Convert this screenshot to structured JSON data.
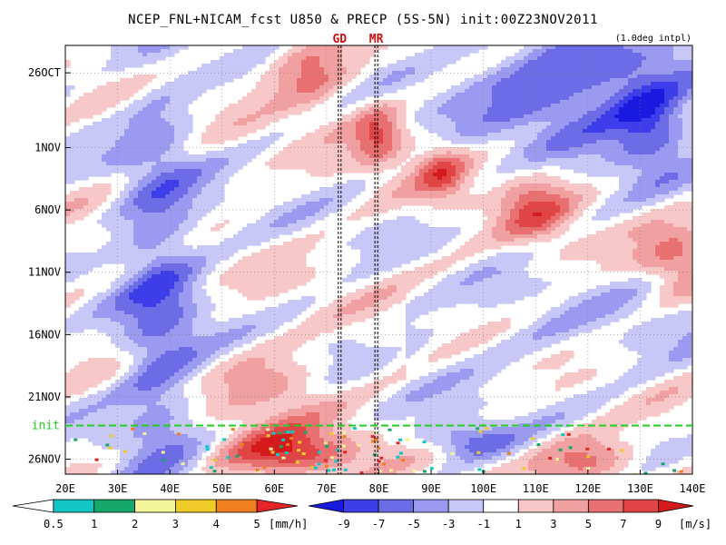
{
  "chart_data": {
    "type": "heatmap",
    "title": "NCEP_FNL+NICAM_fcst U850 & PRECP (5S-5N) init:00Z23NOV2011",
    "note": "(1.0deg intpl)",
    "x_ticks": [
      "20E",
      "30E",
      "40E",
      "50E",
      "60E",
      "70E",
      "80E",
      "90E",
      "100E",
      "110E",
      "120E",
      "130E",
      "140E"
    ],
    "xlim": [
      20,
      140
    ],
    "y_ticks": [
      {
        "label": "26OCT",
        "day": 0
      },
      {
        "label": "1NOV",
        "day": 6
      },
      {
        "label": "6NOV",
        "day": 11
      },
      {
        "label": "11NOV",
        "day": 16
      },
      {
        "label": "16NOV",
        "day": 21
      },
      {
        "label": "21NOV",
        "day": 26
      },
      {
        "label": "26NOV",
        "day": 31
      }
    ],
    "ylim_days": [
      -2.2,
      32.2
    ],
    "init": {
      "label": "init",
      "day": 28.3,
      "color": "#22cc22"
    },
    "markers": [
      {
        "label": "GD",
        "lon": 72.5,
        "color": "#cc1111"
      },
      {
        "label": "MR",
        "lon": 79.5,
        "color": "#cc1111"
      }
    ],
    "precip_colorbar": {
      "labels": [
        "0.5",
        "1",
        "2",
        "3",
        "4",
        "5"
      ],
      "unit": "[mm/h]",
      "colors": [
        "#ffffff",
        "#13c6c6",
        "#14a86a",
        "#f4f49a",
        "#eecb26",
        "#ef7f1e",
        "#e52525"
      ]
    },
    "u850_colorbar": {
      "labels": [
        "-9",
        "-7",
        "-5",
        "-3",
        "-1",
        "1",
        "3",
        "5",
        "7",
        "9"
      ],
      "unit": "[m/s]",
      "colors": [
        "#1a1ae0",
        "#3d3dea",
        "#6c6ce6",
        "#9a9af0",
        "#c8c8f8",
        "#ffffff",
        "#f8c8c8",
        "#f0a0a0",
        "#e87070",
        "#e04444",
        "#d41a1a"
      ]
    },
    "u850_features": [
      {
        "name": "easterly-40E-band",
        "lon": 38,
        "day": 18,
        "wlon": 8,
        "wday": 18,
        "value": -6
      },
      {
        "name": "easterly-east-top",
        "lon": 118,
        "day": 1,
        "wlon": 22,
        "wday": 5,
        "value": -7
      },
      {
        "name": "easterly-130E",
        "lon": 132,
        "day": 4,
        "wlon": 7,
        "wday": 4,
        "value": -6
      },
      {
        "name": "westerly-70E-top",
        "lon": 67,
        "day": 0,
        "wlon": 8,
        "wday": 3,
        "value": 6
      },
      {
        "name": "westerly-80E-oct31",
        "lon": 80,
        "day": 5,
        "wlon": 5,
        "wday": 2.5,
        "value": 7
      },
      {
        "name": "westerly-90E-nov3",
        "lon": 92,
        "day": 8,
        "wlon": 5,
        "wday": 2.5,
        "value": 6
      },
      {
        "name": "westerly-110E-nov6",
        "lon": 110,
        "day": 11,
        "wlon": 7,
        "wday": 3,
        "value": 6
      },
      {
        "name": "westerly-135E-nov10",
        "lon": 137,
        "day": 15,
        "wlon": 7,
        "wday": 3,
        "value": 5
      },
      {
        "name": "westerly-60E-nov20",
        "lon": 60,
        "day": 25,
        "wlon": 10,
        "wday": 3,
        "value": 4
      },
      {
        "name": "westerly-forecast-60E",
        "lon": 62,
        "day": 30.5,
        "wlon": 13,
        "wday": 2,
        "value": 9
      },
      {
        "name": "westerly-forecast-120E",
        "lon": 120,
        "day": 31,
        "wlon": 10,
        "wday": 2,
        "value": 6
      },
      {
        "name": "easterly-forecast-95E",
        "lon": 97,
        "day": 29.5,
        "wlon": 9,
        "wday": 1.5,
        "value": -6
      }
    ]
  }
}
